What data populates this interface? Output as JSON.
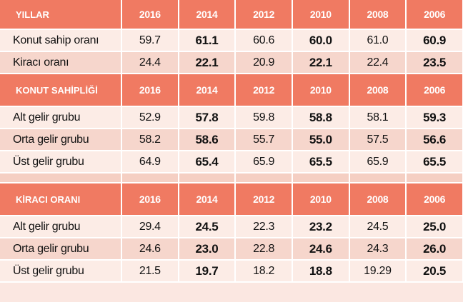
{
  "sections": [
    {
      "header": {
        "label": "YILLAR",
        "years": [
          "2016",
          "2014",
          "2012",
          "2010",
          "2008",
          "2006"
        ]
      },
      "rows": [
        {
          "label": "Konut sahip oranı",
          "values": [
            "59.7",
            "61.1",
            "60.6",
            "60.0",
            "61.0",
            "60.9"
          ]
        },
        {
          "label": "Kiracı oranı",
          "values": [
            "24.4",
            "22.1",
            "20.9",
            "22.1",
            "22.4",
            "23.5"
          ]
        }
      ]
    },
    {
      "header": {
        "label": "KONUT SAHİPLİĞİ",
        "years": [
          "2016",
          "2014",
          "2012",
          "2010",
          "2008",
          "2006"
        ]
      },
      "rows": [
        {
          "label": "Alt gelir grubu",
          "values": [
            "52.9",
            "57.8",
            "59.8",
            "58.8",
            "58.1",
            "59.3"
          ]
        },
        {
          "label": "Orta gelir grubu",
          "values": [
            "58.2",
            "58.6",
            "55.7",
            "55.0",
            "57.5",
            "56.6"
          ]
        },
        {
          "label": "Üst gelir grubu",
          "values": [
            "64.9",
            "65.4",
            "65.9",
            "65.5",
            "65.9",
            "65.5"
          ]
        }
      ]
    },
    {
      "header": {
        "label": "KİRACI ORANI",
        "years": [
          "2016",
          "2014",
          "2012",
          "2010",
          "2008",
          "2006"
        ]
      },
      "rows": [
        {
          "label": "Alt gelir grubu",
          "values": [
            "29.4",
            "24.5",
            "22.3",
            "23.2",
            "24.5",
            "25.0"
          ]
        },
        {
          "label": "Orta gelir grubu",
          "values": [
            "24.6",
            "23.0",
            "22.8",
            "24.6",
            "24.3",
            "26.0"
          ]
        },
        {
          "label": "Üst gelir grubu",
          "values": [
            "21.5",
            "19.7",
            "18.2",
            "18.8",
            "19.29",
            "20.5"
          ]
        }
      ]
    }
  ],
  "colors": {
    "header": "#f07a62",
    "row_light": "#fcece6",
    "row_dark": "#f6d6cc"
  }
}
